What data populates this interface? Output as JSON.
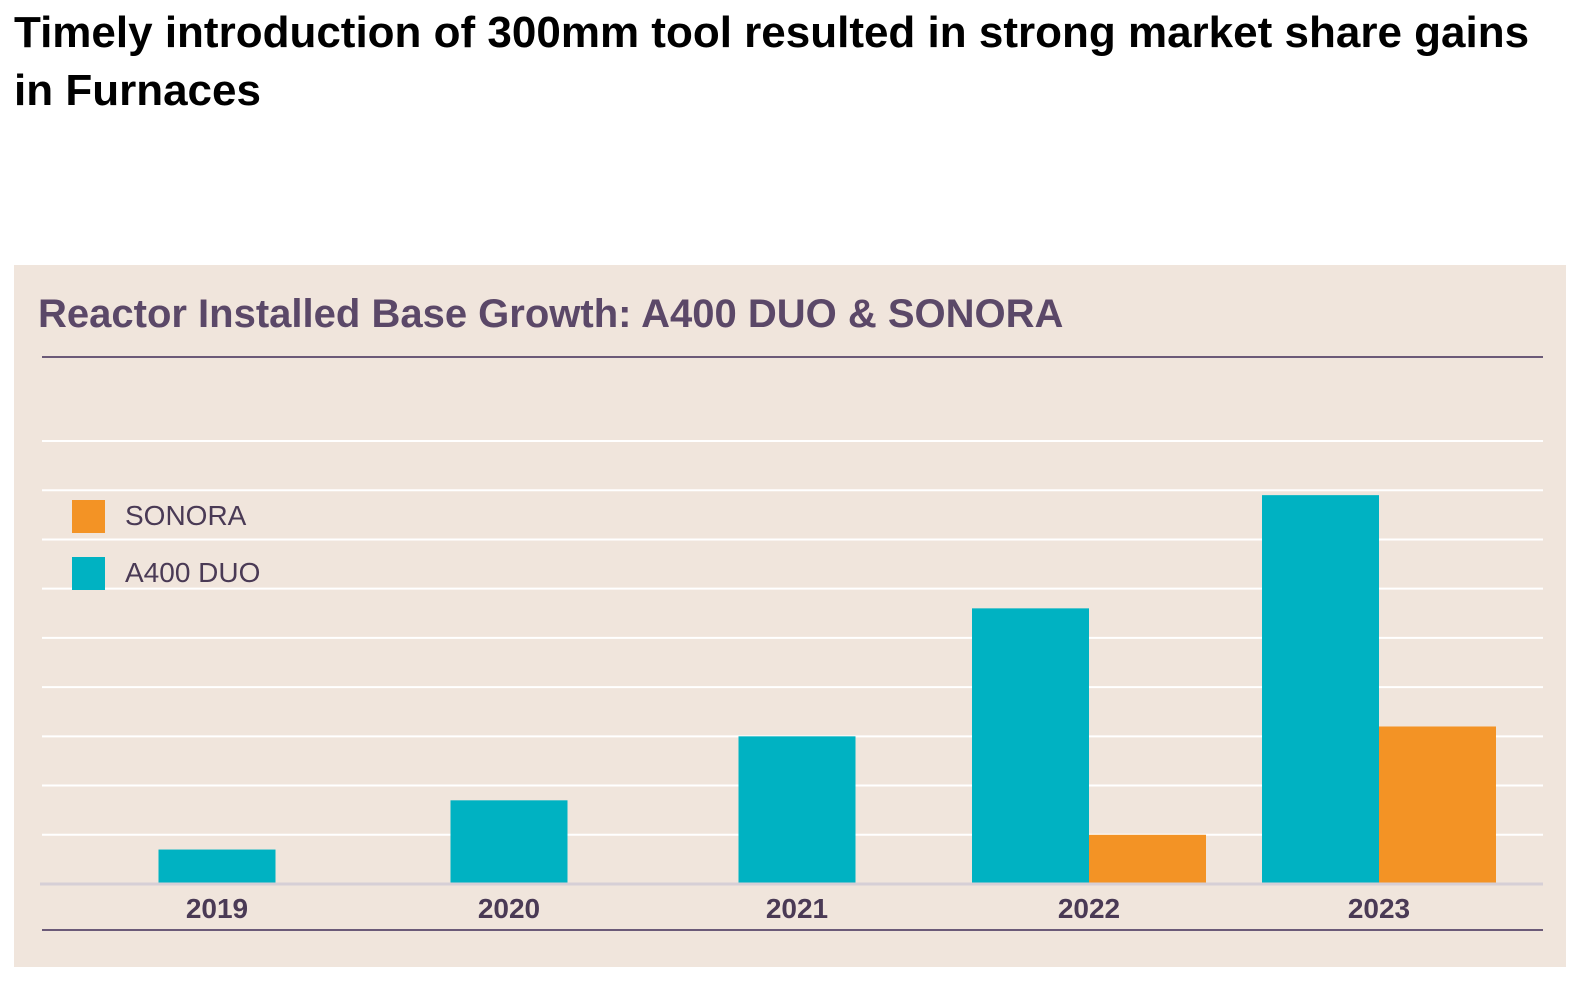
{
  "headline": "Timely introduction of 300mm tool resulted in strong market share gains in Furnaces",
  "chart_data": {
    "type": "bar",
    "title": "Reactor Installed Base Growth: A400 DUO & SONORA",
    "categories": [
      "2019",
      "2020",
      "2021",
      "2022",
      "2023"
    ],
    "series": [
      {
        "name": "A400 DUO",
        "color": "#00b2c2",
        "values": [
          0.7,
          1.7,
          3.0,
          5.6,
          7.9
        ]
      },
      {
        "name": "SONORA",
        "color": "#f39325",
        "values": [
          0,
          0,
          0,
          1.0,
          3.2
        ]
      }
    ],
    "ylim": [
      0,
      9
    ],
    "grid": true,
    "xlabel": "",
    "ylabel": "",
    "legend_position": "top-left",
    "legend_order": [
      "SONORA",
      "A400 DUO"
    ]
  }
}
